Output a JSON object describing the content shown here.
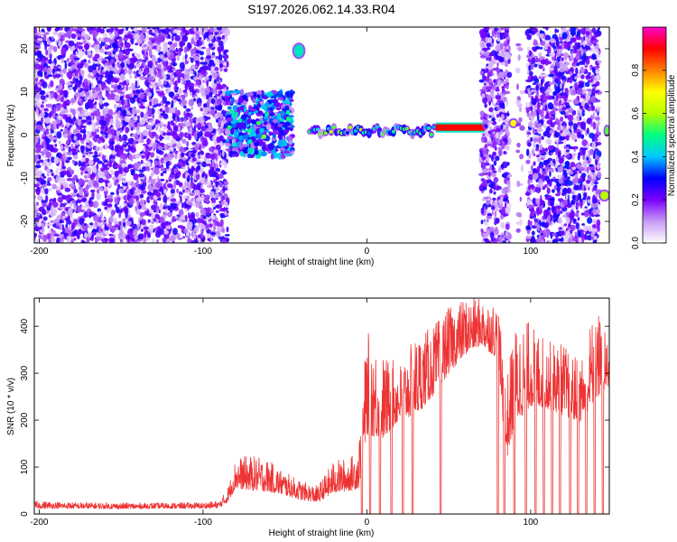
{
  "title": "S197.2026.062.14.33.R04",
  "chart_data": [
    {
      "type": "heatmap",
      "title": "S197.2026.062.14.33.R04",
      "xlabel": "Height of straight line (km)",
      "ylabel": "Frequency (Hz)",
      "xlim": [
        -203,
        148
      ],
      "ylim": [
        -25,
        25
      ],
      "xticks": [
        -200,
        -100,
        0,
        100
      ],
      "yticks": [
        -20,
        -10,
        0,
        10,
        20
      ],
      "colorbar": {
        "label": "Normalized spectral amplitude",
        "range": [
          0,
          1
        ],
        "ticks": [
          0.0,
          0.2,
          0.4,
          0.6,
          0.8
        ],
        "tick_labels": [
          "0.0",
          "0.2",
          "0.4",
          "0.6",
          "0.8"
        ],
        "colors": [
          "#ffffff",
          "#c89bf5",
          "#7a00ff",
          "#0000ff",
          "#00c8ff",
          "#00ff80",
          "#b4ff00",
          "#ffff00",
          "#ff8000",
          "#ff0000",
          "#ff00c8"
        ]
      },
      "regions": [
        {
          "x_range": [
            -203,
            -85
          ],
          "freq_range": [
            -25,
            25
          ],
          "pattern": "dense speckle",
          "amplitude": 0.2
        },
        {
          "x_range": [
            -85,
            -45
          ],
          "freq_range": [
            -5,
            10
          ],
          "pattern": "cluster",
          "amplitude": 0.35
        },
        {
          "x_range": [
            -45,
            -38
          ],
          "freq_range": [
            18,
            21
          ],
          "pattern": "blob",
          "amplitude": 0.45
        },
        {
          "x_range": [
            -35,
            42
          ],
          "freq_range": [
            -2,
            4
          ],
          "pattern": "narrow band",
          "amplitude": 0.5
        },
        {
          "x_range": [
            42,
            72
          ],
          "freq_range": [
            1,
            2.5
          ],
          "pattern": "strong line",
          "amplitude": 0.9
        },
        {
          "x_range": [
            70,
            87
          ],
          "freq_range": [
            -25,
            25
          ],
          "pattern": "dense speckle",
          "amplitude": 0.2
        },
        {
          "x_range": [
            87,
            92
          ],
          "freq_range": [
            2,
            3.5
          ],
          "pattern": "blob",
          "amplitude": 0.7
        },
        {
          "x_range": [
            92,
            95
          ],
          "freq_range": [
            -25,
            25
          ],
          "pattern": "sparse speckle",
          "amplitude": 0.12
        },
        {
          "x_range": [
            98,
            142
          ],
          "freq_range": [
            -25,
            25
          ],
          "pattern": "dense speckle",
          "amplitude": 0.22
        },
        {
          "x_range": [
            142,
            148
          ],
          "freq_range": [
            -15,
            -13
          ],
          "pattern": "blob",
          "amplitude": 0.6
        },
        {
          "x_range": [
            145,
            148
          ],
          "freq_range": [
            0,
            2
          ],
          "pattern": "blob",
          "amplitude": 0.55
        }
      ]
    },
    {
      "type": "line",
      "title": "",
      "xlabel": "Height of straight line (km)",
      "ylabel": "SNR (10 * v/v)",
      "xlim": [
        -203,
        148
      ],
      "ylim": [
        0,
        460
      ],
      "xticks": [
        -200,
        -100,
        0,
        100
      ],
      "yticks": [
        0,
        100,
        200,
        300,
        400
      ],
      "series": [
        {
          "name": "SNR",
          "color": "#ee3333",
          "envelope": {
            "x": [
              -203,
              -180,
              -150,
              -120,
              -100,
              -90,
              -85,
              -80,
              -70,
              -60,
              -50,
              -40,
              -30,
              -20,
              -10,
              -5,
              0,
              10,
              20,
              30,
              40,
              50,
              60,
              70,
              80,
              85,
              90,
              100,
              110,
              120,
              130,
              140,
              148
            ],
            "base": [
              12,
              12,
              11,
              12,
              12,
              13,
              25,
              55,
              50,
              48,
              40,
              30,
              25,
              45,
              50,
              55,
              170,
              160,
              200,
              210,
              250,
              300,
              340,
              360,
              330,
              110,
              190,
              230,
              225,
              210,
              195,
              245,
              270
            ],
            "peak": [
              28,
              25,
              24,
              24,
              25,
              28,
              55,
              120,
              125,
              115,
              90,
              70,
              60,
              115,
              120,
              150,
              390,
              340,
              320,
              380,
              400,
              440,
              460,
              460,
              450,
              280,
              400,
              415,
              370,
              365,
              330,
              450,
              360
            ]
          },
          "dropouts_to_zero_km": [
            -3,
            2,
            8,
            15,
            22,
            28,
            45,
            80,
            84,
            90,
            97,
            103,
            108,
            113,
            118,
            124,
            129,
            134,
            139,
            144
          ]
        }
      ]
    }
  ]
}
